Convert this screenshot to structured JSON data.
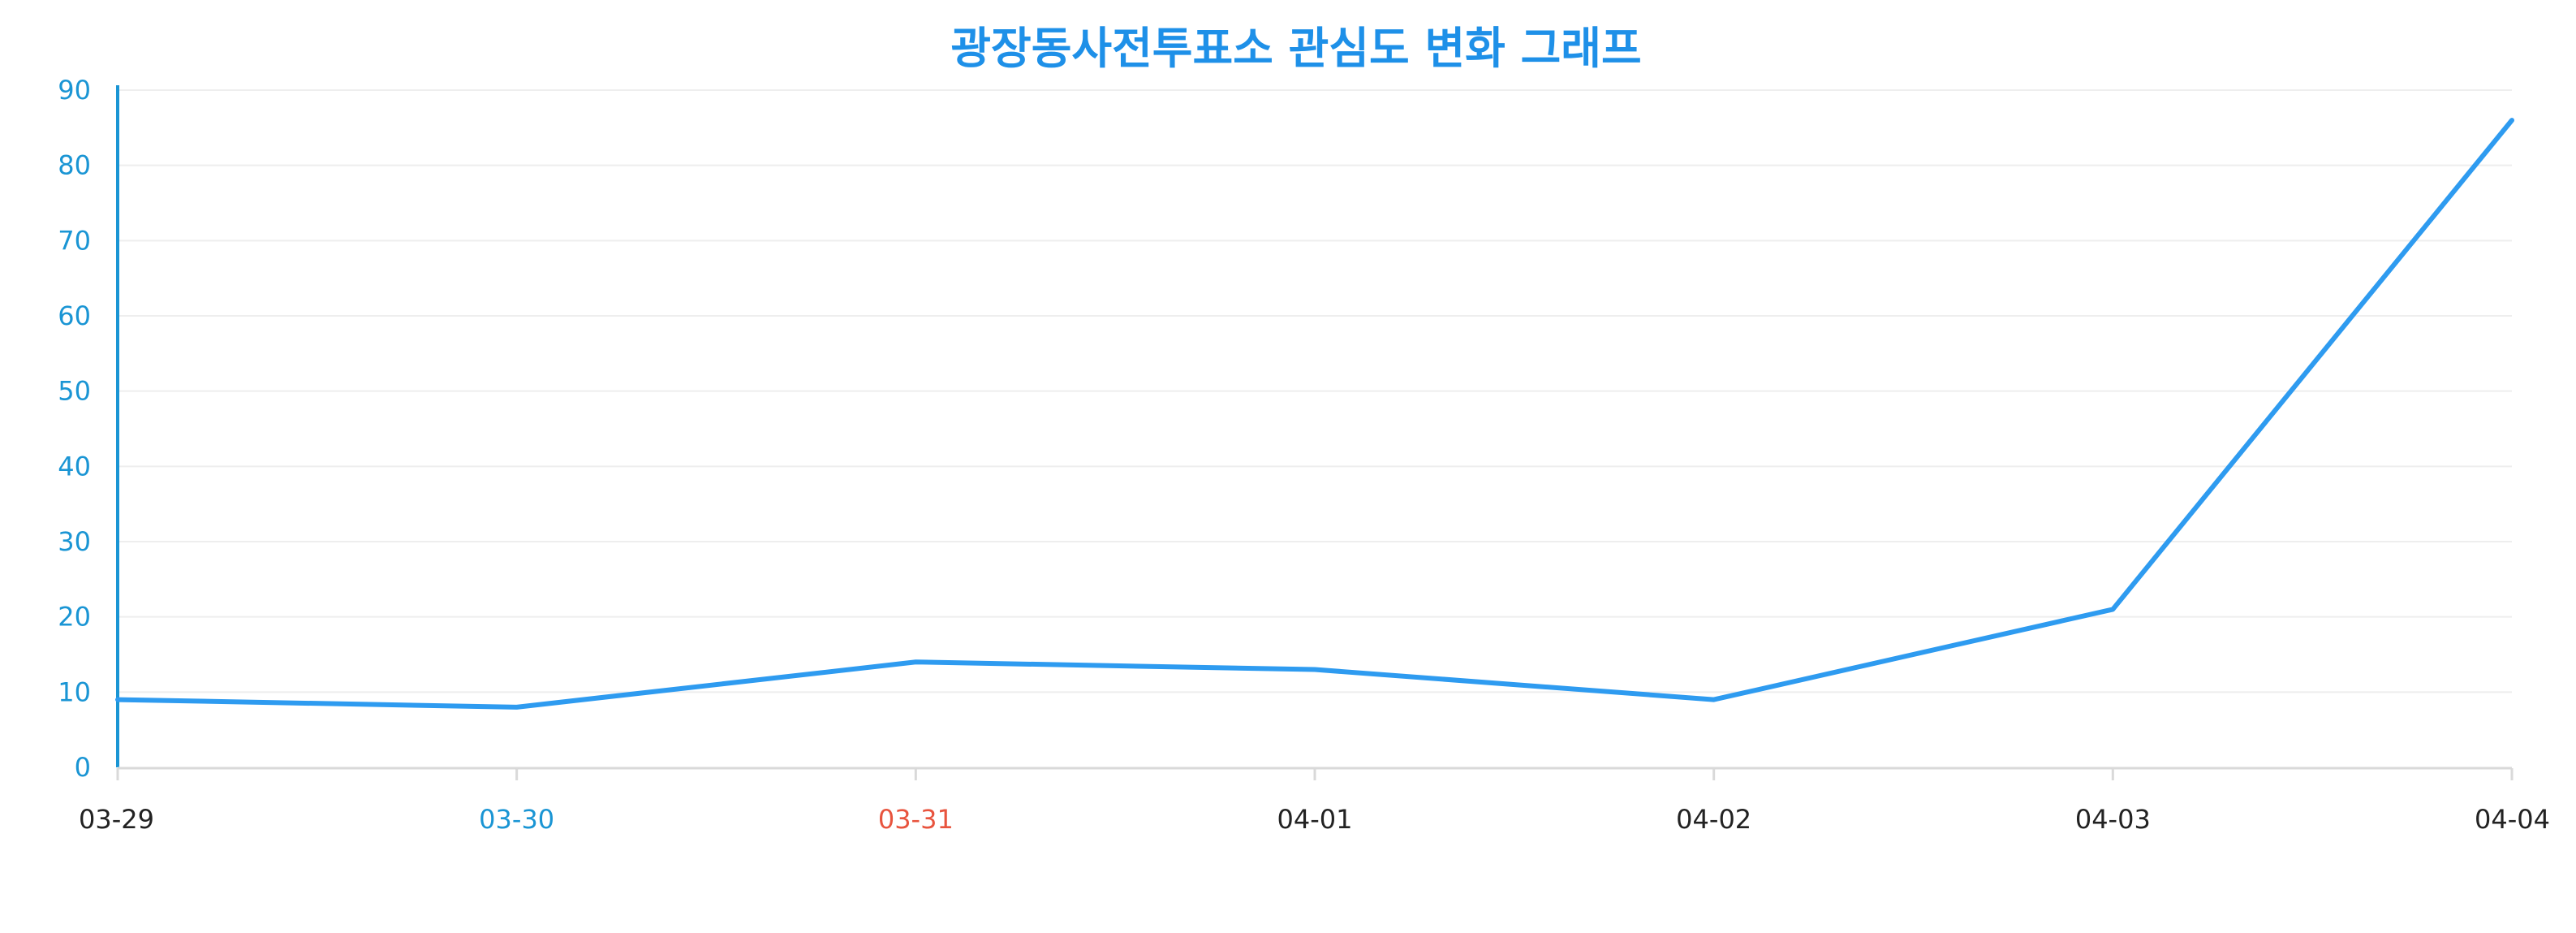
{
  "chart_data": {
    "type": "line",
    "title": "광장동사전투표소 관심도 변화 그래프",
    "categories": [
      "03-29",
      "03-30",
      "03-31",
      "04-01",
      "04-02",
      "04-03",
      "04-04"
    ],
    "series": [
      {
        "values": [
          9,
          8,
          14,
          13,
          9,
          21,
          86
        ]
      }
    ],
    "ylim": [
      0,
      90
    ],
    "yticks": [
      0,
      10,
      20,
      30,
      40,
      50,
      60,
      70,
      80,
      90
    ],
    "grid": true,
    "xlabel": "",
    "ylabel": ""
  },
  "colors": {
    "title": "#1e90e8",
    "line": "#2e9bf0",
    "y_axis": "#1a95d4",
    "y_tick_label": "#1a95d4",
    "grid": "#eeeeee",
    "x_axis": "#d9d9d9",
    "x_tick_label_default": "#222222",
    "x_tick_label_saturday": "#1a95d4",
    "x_tick_label_sunday": "#e8543e"
  },
  "x_label_colors": [
    "default",
    "saturday",
    "sunday",
    "default",
    "default",
    "default",
    "default"
  ]
}
